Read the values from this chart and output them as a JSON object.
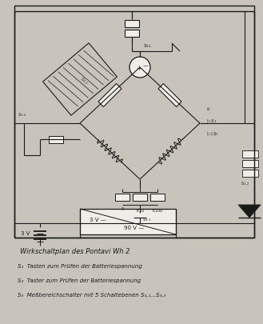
{
  "bg_color": "#c8c4bc",
  "line_color": "#1a1a1a",
  "white": "#f0ede8",
  "title": "Wirkschaltplan des Pontavi Wh 2",
  "legend_lines": [
    "S₁  Tasten zum Prüfen der Batteriespannung",
    "S₂  Taster zum Prüfen der Batteriespannung",
    "S₃  Meßbereichschalter mit 5 Schaltebenen S₃,₁...S₃,₃"
  ]
}
